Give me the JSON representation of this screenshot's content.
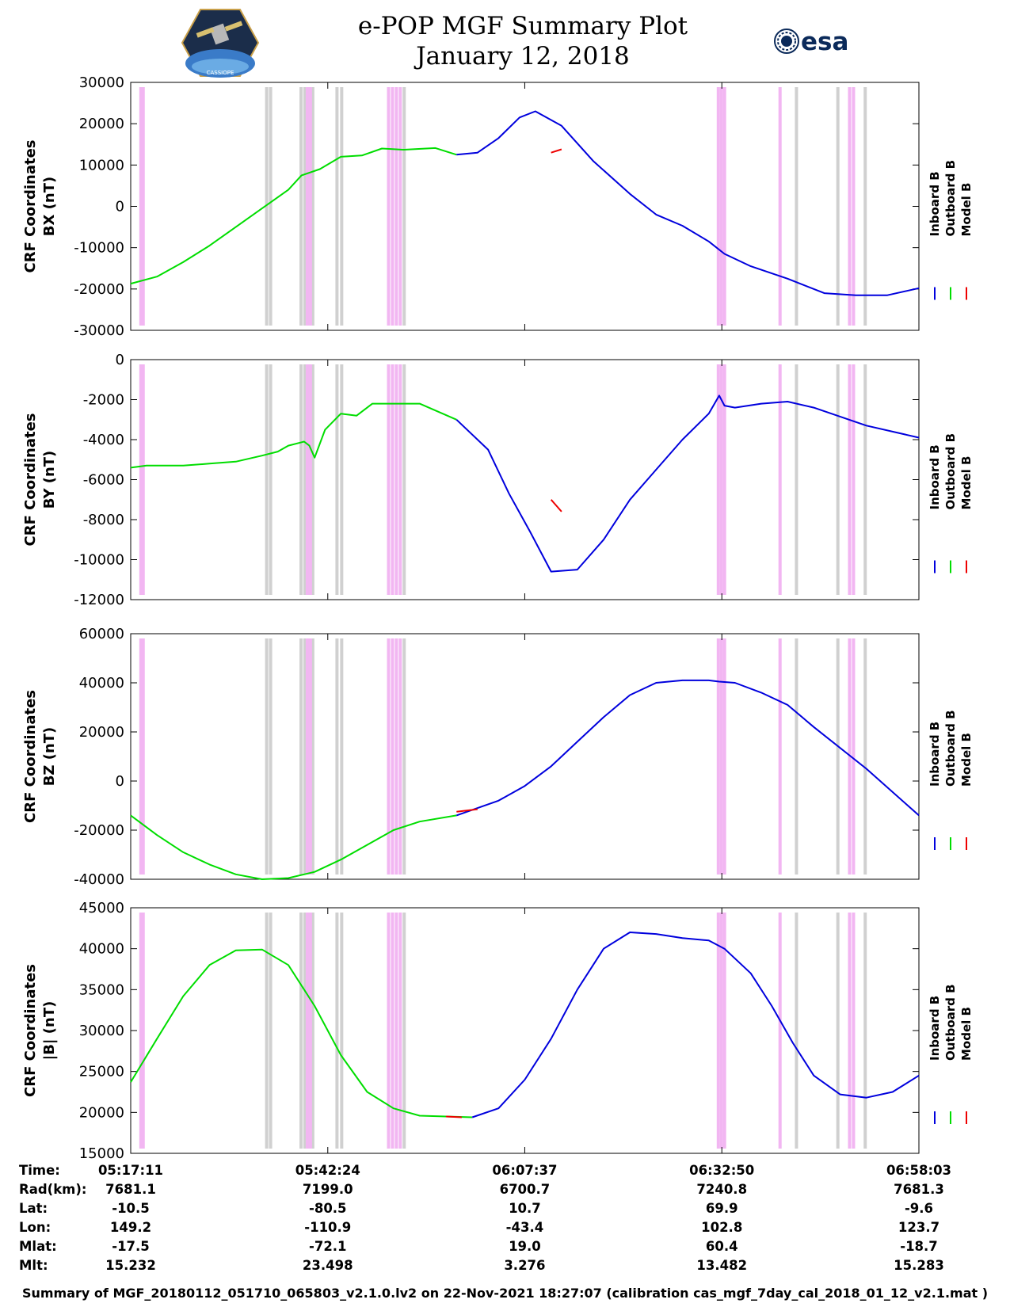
{
  "header": {
    "title": "e-POP MGF Summary Plot",
    "date": "January 12, 2018",
    "left_logo_text": "CASSIOPE",
    "right_logo_text": "esa"
  },
  "colors": {
    "inboard": "#0000dd",
    "outboard": "#00dd00",
    "model": "#ee0000",
    "gray_band": "#d0d0d0",
    "pink_band": "#f2b6f2"
  },
  "chart_data": [
    {
      "type": "line",
      "ylabel_line1": "CRF Coordinates",
      "ylabel_line2": "BX (nT)",
      "ylim": [
        -30000,
        30000
      ],
      "yticks": [
        -30000,
        -20000,
        -10000,
        0,
        10000,
        20000,
        30000
      ],
      "legend": [
        "Inboard B",
        "Outboard B",
        "Model B"
      ],
      "outboard": {
        "x": [
          0,
          5,
          10,
          15,
          20,
          25,
          30,
          32.5,
          36,
          40,
          44,
          47.8,
          52,
          58,
          62
        ],
        "y": [
          -18700,
          -17000,
          -13500,
          -9500,
          -5000,
          -500,
          4000,
          7500,
          9000,
          12000,
          12300,
          14000,
          13700,
          14100,
          12500
        ]
      },
      "inboard": {
        "x": [
          62,
          66,
          70,
          74,
          77,
          82,
          88,
          95,
          100,
          105,
          110,
          113,
          118,
          125,
          132,
          138,
          144,
          150
        ],
        "y": [
          12500,
          13000,
          16500,
          21500,
          23000,
          19500,
          11000,
          3000,
          -2000,
          -4700,
          -8500,
          -11500,
          -14500,
          -17500,
          -21000,
          -21500,
          -21500,
          -19800
        ]
      },
      "model_marks": [
        {
          "x": [
            80,
            82
          ],
          "y": [
            13000,
            13800
          ]
        }
      ]
    },
    {
      "type": "line",
      "ylabel_line1": "CRF Coordinates",
      "ylabel_line2": "BY (nT)",
      "ylim": [
        -12000,
        0
      ],
      "yticks": [
        -12000,
        -10000,
        -8000,
        -6000,
        -4000,
        -2000,
        0
      ],
      "legend": [
        "Inboard B",
        "Outboard B",
        "Model B"
      ],
      "outboard": {
        "x": [
          0,
          3,
          10,
          15,
          20,
          25,
          28,
          30,
          33,
          34,
          35,
          37,
          40,
          43,
          46,
          50,
          55,
          62
        ],
        "y": [
          -5400,
          -5300,
          -5300,
          -5200,
          -5100,
          -4800,
          -4600,
          -4300,
          -4100,
          -4300,
          -4900,
          -3500,
          -2700,
          -2800,
          -2200,
          -2200,
          -2200,
          -3000
        ]
      },
      "inboard": {
        "x": [
          62,
          68,
          72,
          76,
          80,
          85,
          90,
          95,
          100,
          105,
          110,
          112,
          113,
          115,
          120,
          125,
          130,
          140,
          150
        ],
        "y": [
          -3000,
          -4500,
          -6700,
          -8600,
          -10600,
          -10500,
          -9000,
          -7000,
          -5500,
          -4000,
          -2700,
          -1800,
          -2300,
          -2400,
          -2200,
          -2100,
          -2400,
          -3300,
          -3900
        ]
      },
      "model_marks": [
        {
          "x": [
            80,
            82
          ],
          "y": [
            -7000,
            -7600
          ]
        }
      ]
    },
    {
      "type": "line",
      "ylabel_line1": "CRF Coordinates",
      "ylabel_line2": "BZ (nT)",
      "ylim": [
        -40000,
        60000
      ],
      "yticks": [
        -40000,
        -20000,
        0,
        20000,
        40000,
        60000
      ],
      "legend": [
        "Inboard B",
        "Outboard B",
        "Model B"
      ],
      "outboard": {
        "x": [
          0,
          5,
          10,
          15,
          20,
          25,
          30,
          35,
          40,
          45,
          50,
          55,
          62
        ],
        "y": [
          -14000,
          -22000,
          -29000,
          -34000,
          -38000,
          -40000,
          -39500,
          -37000,
          -32000,
          -26000,
          -20000,
          -16500,
          -14000
        ]
      },
      "inboard": {
        "x": [
          62,
          70,
          75,
          80,
          85,
          90,
          95,
          100,
          105,
          110,
          112,
          115,
          120,
          125,
          130,
          140,
          150
        ],
        "y": [
          -14000,
          -8000,
          -2000,
          6000,
          16000,
          26000,
          35000,
          40000,
          41000,
          41000,
          40500,
          40000,
          36000,
          31000,
          22000,
          5000,
          -14000
        ]
      },
      "model_marks": [
        {
          "x": [
            62,
            66
          ],
          "y": [
            -12500,
            -11500
          ]
        }
      ]
    },
    {
      "type": "line",
      "ylabel_line1": "CRF Coordinates",
      "ylabel_line2": "|B| (nT)",
      "ylim": [
        15000,
        45000
      ],
      "yticks": [
        15000,
        20000,
        25000,
        30000,
        35000,
        40000,
        45000
      ],
      "legend": [
        "Inboard B",
        "Outboard B",
        "Model B"
      ],
      "outboard": {
        "x": [
          0,
          5,
          10,
          15,
          20,
          25,
          30,
          35,
          40,
          45,
          50,
          55,
          60,
          65
        ],
        "y": [
          23700,
          29000,
          34200,
          38000,
          39800,
          39900,
          38000,
          33000,
          27000,
          22500,
          20500,
          19600,
          19500,
          19400
        ]
      },
      "inboard": {
        "x": [
          65,
          70,
          75,
          80,
          85,
          90,
          95,
          100,
          105,
          110,
          113,
          118,
          122,
          126,
          130,
          135,
          140,
          145,
          150
        ],
        "y": [
          19400,
          20500,
          24000,
          29000,
          35000,
          40000,
          42000,
          41800,
          41300,
          41000,
          40000,
          37000,
          33000,
          28500,
          24500,
          22200,
          21800,
          22500,
          24500
        ]
      },
      "model_marks": [
        {
          "x": [
            60,
            63
          ],
          "y": [
            19500,
            19400
          ]
        }
      ]
    }
  ],
  "x_axis": {
    "x_ticks_minutes": [
      0,
      25.22,
      50.43,
      75.65,
      100.87
    ],
    "x_range_minutes": [
      0,
      100.87
    ]
  },
  "bands": [
    {
      "color": "pink",
      "x": 1.3
    },
    {
      "color": "pink",
      "x": 1.6
    },
    {
      "color": "gray",
      "x": 17.4
    },
    {
      "color": "gray",
      "x": 17.9
    },
    {
      "color": "gray",
      "x": 21.8
    },
    {
      "color": "gray",
      "x": 22.3
    },
    {
      "color": "gray",
      "x": 22.8
    },
    {
      "color": "gray",
      "x": 23.3
    },
    {
      "color": "pink",
      "x": 22.6
    },
    {
      "color": "pink",
      "x": 23.0
    },
    {
      "color": "gray",
      "x": 26.4
    },
    {
      "color": "gray",
      "x": 27.0
    },
    {
      "color": "pink",
      "x": 33.0
    },
    {
      "color": "pink",
      "x": 33.5
    },
    {
      "color": "pink",
      "x": 34.0
    },
    {
      "color": "pink",
      "x": 34.5
    },
    {
      "color": "gray",
      "x": 35.0
    },
    {
      "color": "pink",
      "x": 75.2
    },
    {
      "color": "pink",
      "x": 75.6
    },
    {
      "color": "pink",
      "x": 76.0
    },
    {
      "color": "pink",
      "x": 83.1
    },
    {
      "color": "gray",
      "x": 85.2
    },
    {
      "color": "gray",
      "x": 90.5
    },
    {
      "color": "pink",
      "x": 92.0
    },
    {
      "color": "pink",
      "x": 92.5
    },
    {
      "color": "gray",
      "x": 94.0
    }
  ],
  "table": {
    "labels": [
      "Time:",
      "Rad(km):",
      "Lat:",
      "Lon:",
      "Mlat:",
      "Mlt:"
    ],
    "columns": [
      [
        "05:17:11",
        "7681.1",
        "-10.5",
        "149.2",
        "-17.5",
        "15.232"
      ],
      [
        "05:42:24",
        "7199.0",
        "-80.5",
        "-110.9",
        "-72.1",
        "23.498"
      ],
      [
        "06:07:37",
        "6700.7",
        "10.7",
        "-43.4",
        "19.0",
        "3.276"
      ],
      [
        "06:32:50",
        "7240.8",
        "69.9",
        "102.8",
        "60.4",
        "13.482"
      ],
      [
        "06:58:03",
        "7681.3",
        "-9.6",
        "123.7",
        "-18.7",
        "15.283"
      ]
    ]
  },
  "footer": "Summary of MGF_20180112_051710_065803_v2.1.0.lv2 on 22-Nov-2021 18:27:07 (calibration cas_mgf_7day_cal_2018_01_12_v2.1.mat )"
}
